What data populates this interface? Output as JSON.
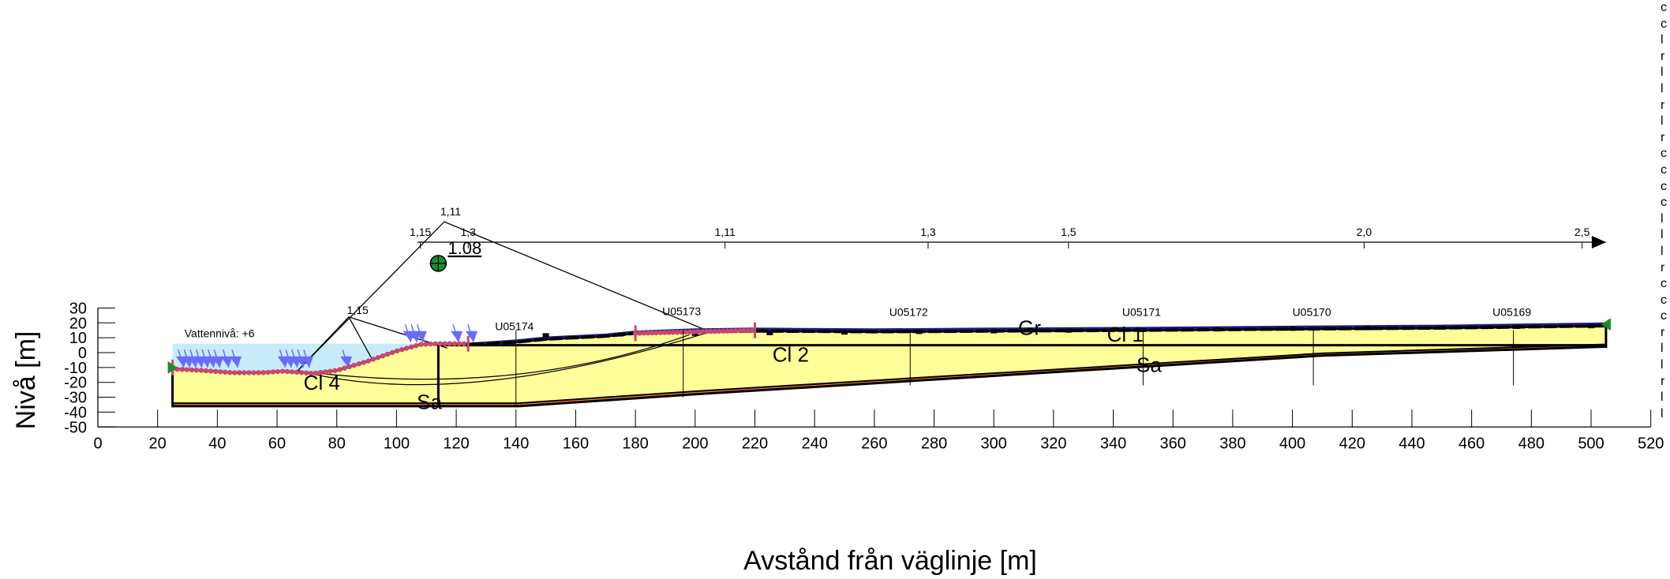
{
  "axes": {
    "xlabel": "Avstånd från väglinje [m]",
    "ylabel": "Nivå [m]",
    "xlim": [
      0,
      520
    ],
    "ylim": [
      -50,
      30
    ],
    "xticks": [
      "0",
      "20",
      "40",
      "60",
      "80",
      "100",
      "120",
      "140",
      "160",
      "180",
      "200",
      "220",
      "240",
      "260",
      "280",
      "300",
      "320",
      "340",
      "360",
      "380",
      "400",
      "420",
      "440",
      "460",
      "480",
      "500",
      "520"
    ],
    "yticks": [
      "30",
      "20",
      "10",
      "0",
      "-10",
      "-20",
      "-30",
      "-40",
      "-50"
    ]
  },
  "water": {
    "label": "Vattennivå: +6",
    "level": 6,
    "color": "#c6ecfa"
  },
  "factor_of_safety": {
    "critical": "1.08",
    "center": [
      114,
      60
    ]
  },
  "radius_line": {
    "labels": [
      {
        "text": "1,15",
        "x": 114
      },
      {
        "text": "1,3",
        "x": 124
      },
      {
        "text": "1,11",
        "x": 210
      },
      {
        "text": "1,3",
        "x": 278
      },
      {
        "text": "1,5",
        "x": 325
      },
      {
        "text": "2,0",
        "x": 424
      },
      {
        "text": "2,5",
        "x": 497
      }
    ]
  },
  "slip_labels": {
    "apex": "1,11",
    "branch": "1,15"
  },
  "boreholes": [
    {
      "name": "U05174",
      "x": 140
    },
    {
      "name": "U05173",
      "x": 196
    },
    {
      "name": "U05172",
      "x": 272
    },
    {
      "name": "U05171",
      "x": 350
    },
    {
      "name": "U05170",
      "x": 407
    },
    {
      "name": "U05169",
      "x": 474
    }
  ],
  "soil_labels": {
    "cl1": "Cl 1",
    "cl2": "Cl 2",
    "cl4": "Cl 4",
    "sa_left": "Sa",
    "sa_right": "Sa",
    "gr": "Gr"
  },
  "colors": {
    "clay": "#ffff99",
    "sand": "#f08040",
    "slip": "#c84870",
    "arrows": "#6a6aff",
    "road": "#1a1a8a",
    "marker_green": "#1a8c2a"
  },
  "right_strip": [
    "c",
    "c",
    "l",
    "r",
    "l",
    "l",
    "r",
    "l",
    "r",
    "c",
    "c",
    "c",
    "c",
    "l",
    "l",
    "l",
    "r",
    "c",
    "c",
    "c",
    "r",
    "l",
    "l",
    "r",
    "l",
    "l"
  ]
}
